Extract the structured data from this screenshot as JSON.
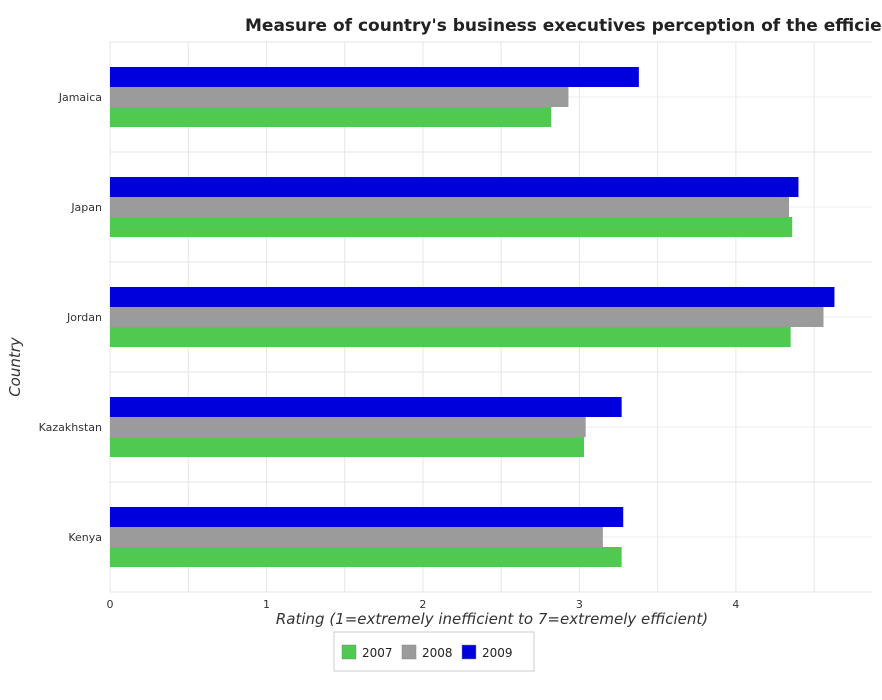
{
  "chart_data": {
    "type": "bar",
    "orientation": "horizontal",
    "title": "Measure of country's business executives perception of the efficiency of customs procedures",
    "xlabel": "Rating (1=extremely inefficient to 7=extremely efficient)",
    "ylabel": "Country",
    "categories": [
      "Jamaica",
      "Japan",
      "Jordan",
      "Kazakhstan",
      "Kenya"
    ],
    "series": [
      {
        "name": "2007",
        "color": "#4fc94f",
        "values": [
          2.82,
          4.36,
          4.35,
          3.03,
          3.27
        ]
      },
      {
        "name": "2008",
        "color": "#9b9b9b",
        "values": [
          2.93,
          4.34,
          4.56,
          3.04,
          3.15
        ]
      },
      {
        "name": "2009",
        "color": "#0000dd",
        "values": [
          3.38,
          4.4,
          4.63,
          3.27,
          3.28
        ]
      }
    ],
    "xlim": [
      0,
      4.87
    ],
    "xticks": [
      0,
      1,
      2,
      3,
      4
    ],
    "grid": true,
    "legend_position": "bottom"
  }
}
